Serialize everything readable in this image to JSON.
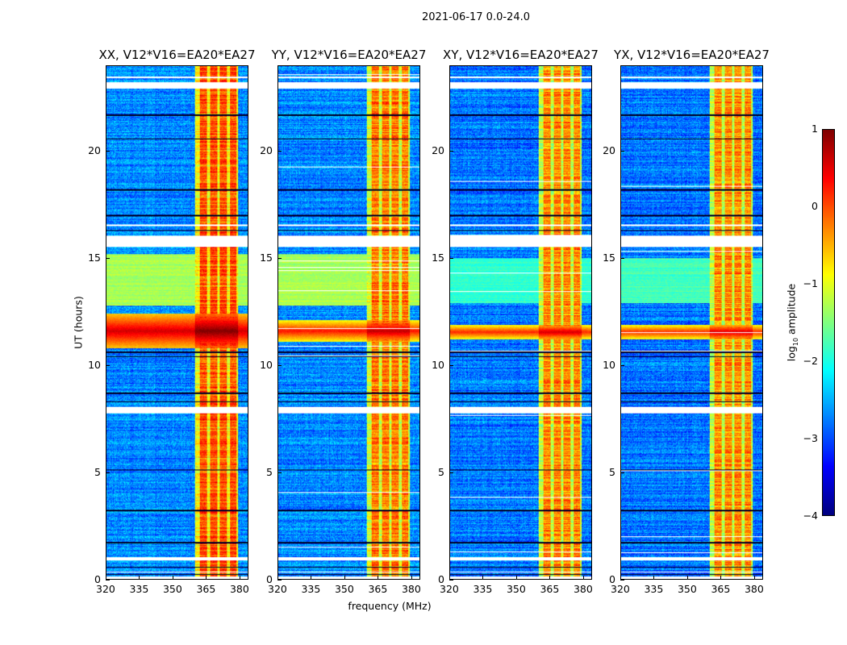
{
  "suptitle": "2021-06-17 0.0-24.0",
  "xlabel": "frequency (MHz)",
  "ylabel": "UT (hours)",
  "colorbar": {
    "label_prefix": "log",
    "label_sub": "10",
    "label_suffix": " amplitude",
    "range": [
      -4,
      1
    ],
    "ticks": [
      "1",
      "0",
      "−1",
      "−2",
      "−3",
      "−4"
    ],
    "tick_values": [
      1,
      0,
      -1,
      -2,
      -3,
      -4
    ],
    "colormap": "jet"
  },
  "chart_data": {
    "type": "heatmap",
    "xlim": [
      320,
      384
    ],
    "ylim": [
      0,
      24
    ],
    "xticks": [
      320,
      335,
      350,
      365,
      380
    ],
    "xtick_labels": [
      "320",
      "335",
      "350",
      "365",
      "380"
    ],
    "yticks": [
      0,
      5,
      10,
      15,
      20
    ],
    "ytick_labels": [
      "0",
      "5",
      "10",
      "15",
      "20"
    ],
    "value_units": "log10 amplitude",
    "panels": [
      {
        "title": "XX, V12*V16=EA20*EA27",
        "background": -2.7,
        "rfi_band": [
          360,
          379.5
        ],
        "rfi_level": -0.4,
        "flare_ut": [
          10.8,
          12.4
        ],
        "flare_level": 0.6,
        "mid_ut": [
          12.8,
          15.2
        ],
        "mid_level": -1.3
      },
      {
        "title": "YY, V12*V16=EA20*EA27",
        "background": -2.7,
        "rfi_band": [
          360,
          379.5
        ],
        "rfi_level": -0.6,
        "flare_ut": [
          11.1,
          12.1
        ],
        "flare_level": 0.3,
        "mid_ut": [
          12.8,
          15.2
        ],
        "mid_level": -1.3
      },
      {
        "title": "XY, V12*V16=EA20*EA27",
        "background": -2.8,
        "rfi_band": [
          360,
          379.5
        ],
        "rfi_level": -0.7,
        "flare_ut": [
          11.2,
          11.9
        ],
        "flare_level": 0.2,
        "mid_ut": [
          12.9,
          15.0
        ],
        "mid_level": -1.9
      },
      {
        "title": "YX, V12*V16=EA20*EA27",
        "background": -2.8,
        "rfi_band": [
          360,
          379.5
        ],
        "rfi_level": -0.7,
        "flare_ut": [
          11.2,
          11.9
        ],
        "flare_level": 0.2,
        "mid_ut": [
          12.9,
          15.0
        ],
        "mid_level": -1.8
      }
    ],
    "rfi_stripe_centers_mhz": [
      364,
      368.5,
      373,
      377.5
    ],
    "flagged_intervals_ut": [
      [
        0.0,
        0.1
      ],
      [
        0.3,
        0.35
      ],
      [
        0.85,
        1.0
      ],
      [
        7.75,
        8.05
      ],
      [
        15.55,
        16.05
      ],
      [
        16.5,
        16.6
      ],
      [
        22.95,
        23.25
      ],
      [
        23.45,
        23.5
      ]
    ],
    "dark_lines_ut": [
      0.2,
      0.55,
      1.7,
      3.2,
      5.1,
      8.3,
      8.7,
      10.4,
      10.6,
      16.3,
      17.0,
      18.2,
      20.6,
      21.7
    ]
  }
}
